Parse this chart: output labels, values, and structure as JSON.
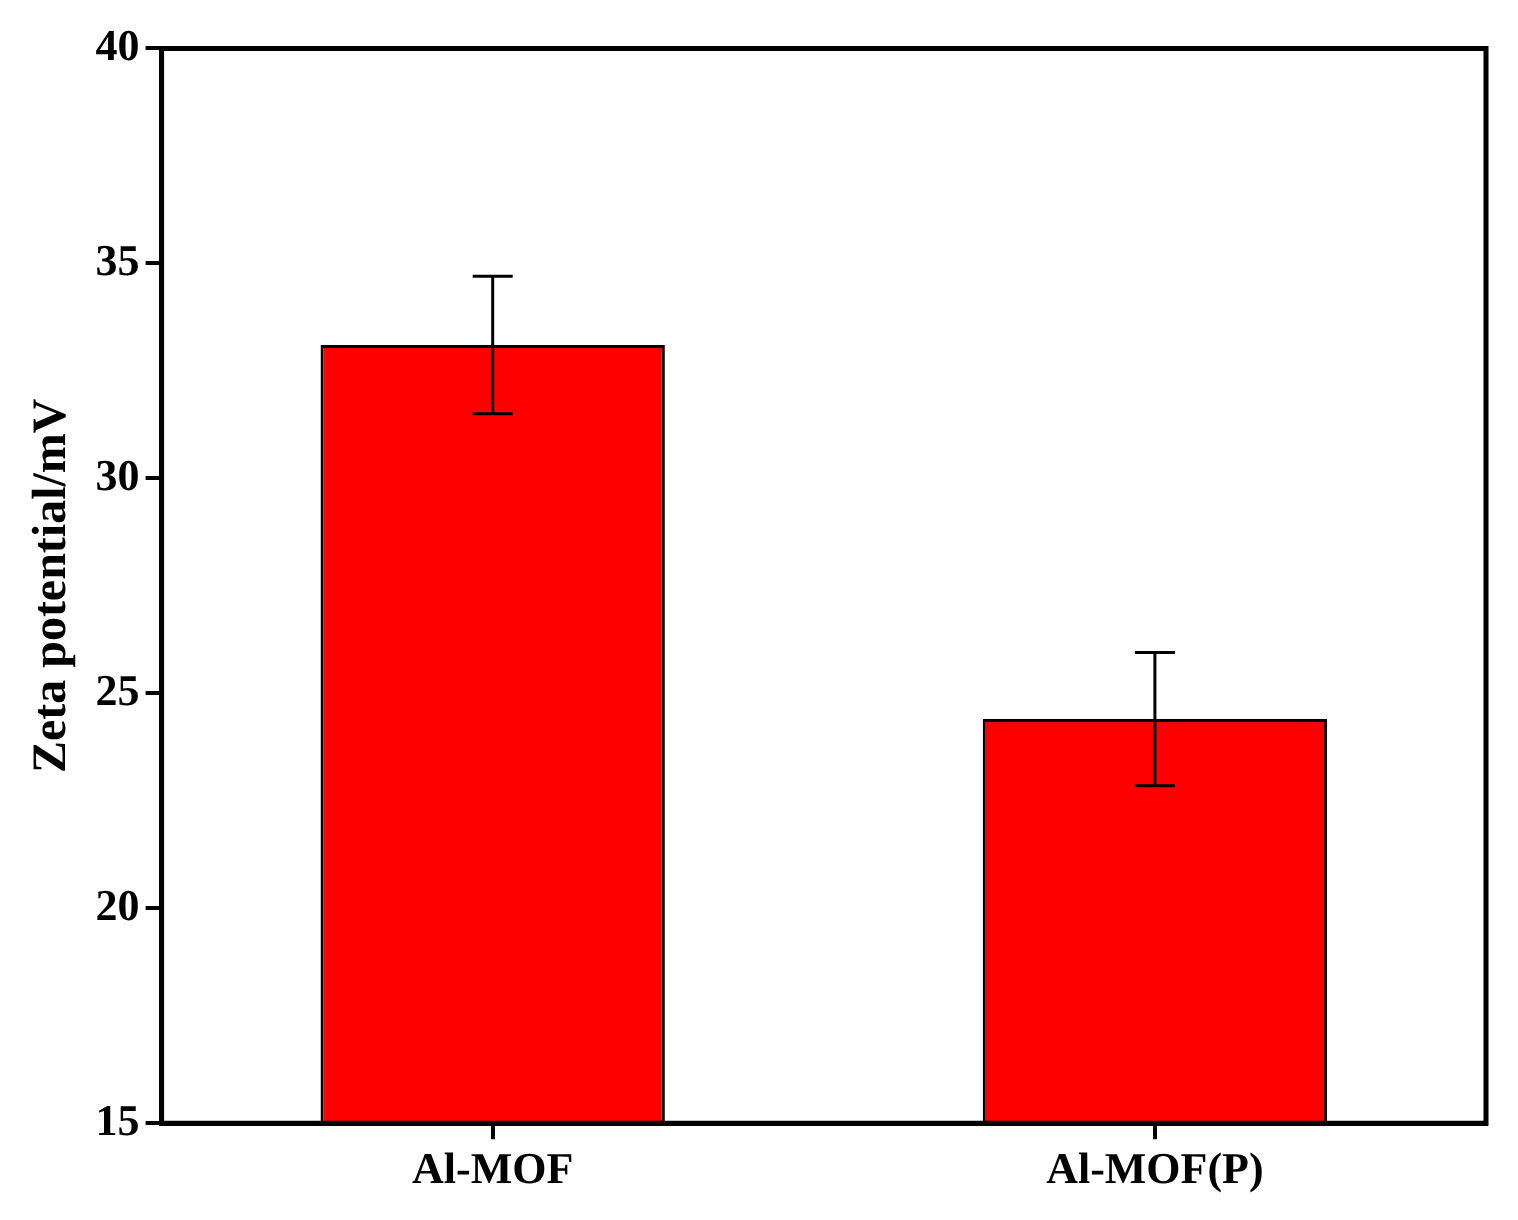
{
  "chart_data": {
    "type": "bar",
    "ylabel": "Zeta potential/mV",
    "categories": [
      "Al-MOF",
      "Al-MOF(P)"
    ],
    "values": [
      33.1,
      24.4
    ],
    "errors": [
      1.6,
      1.55
    ],
    "color": "#ff0000",
    "ylim": [
      15,
      40
    ],
    "yticks": [
      15,
      20,
      25,
      30,
      35,
      40
    ],
    "legend": false
  }
}
